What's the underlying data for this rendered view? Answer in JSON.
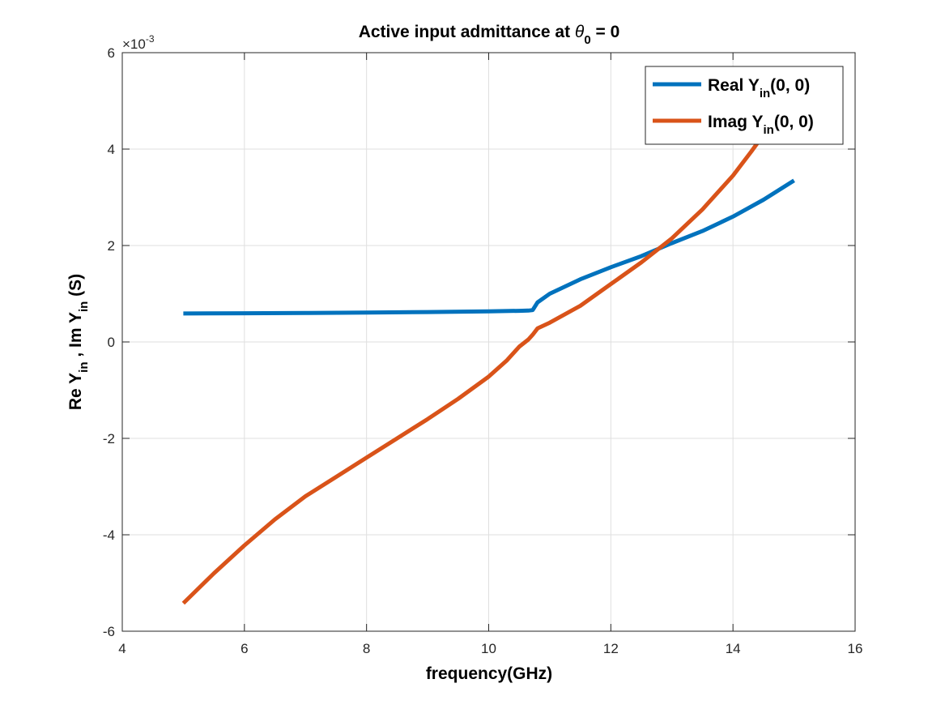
{
  "chart_data": {
    "type": "line",
    "title": {
      "prefix": "Active input admittance at ",
      "symbol": "θ",
      "sub": "0",
      "suffix": " = 0"
    },
    "xlabel": "frequency(GHz)",
    "ylabel": {
      "p1": "Re Y",
      "s1": "in",
      "p2": " , Im Y",
      "s2": "in",
      "p3": " (S)"
    },
    "y_exponent_label": "×10",
    "y_exponent": "-3",
    "xlim": [
      4,
      16
    ],
    "ylim": [
      -6,
      6
    ],
    "xticks": [
      4,
      6,
      8,
      10,
      12,
      14,
      16
    ],
    "yticks": [
      -6,
      -4,
      -2,
      0,
      2,
      4,
      6
    ],
    "grid": true,
    "legend_position": "top-right",
    "series": [
      {
        "name": {
          "pre": "Real Y",
          "sub": "in",
          "post": "(0, 0)"
        },
        "color": "#0072BD",
        "x": [
          5.0,
          6.0,
          7.0,
          8.0,
          9.0,
          10.0,
          10.5,
          10.65,
          10.72,
          10.8,
          11.0,
          11.5,
          12.0,
          12.5,
          13.0,
          13.5,
          14.0,
          14.5,
          15.0
        ],
        "y": [
          0.59,
          0.595,
          0.6,
          0.61,
          0.62,
          0.635,
          0.645,
          0.65,
          0.66,
          0.82,
          1.0,
          1.3,
          1.55,
          1.78,
          2.05,
          2.3,
          2.6,
          2.95,
          3.35
        ]
      },
      {
        "name": {
          "pre": "Imag Y",
          "sub": "in",
          "post": "(0, 0)"
        },
        "color": "#D95319",
        "x": [
          5.0,
          5.5,
          6.0,
          6.5,
          7.0,
          7.5,
          8.0,
          8.5,
          9.0,
          9.5,
          10.0,
          10.3,
          10.5,
          10.65,
          10.72,
          10.8,
          11.0,
          11.5,
          12.0,
          12.5,
          13.0,
          13.5,
          14.0,
          14.3,
          14.5,
          14.6
        ],
        "y": [
          -5.42,
          -4.8,
          -4.22,
          -3.68,
          -3.2,
          -2.8,
          -2.4,
          -2.0,
          -1.6,
          -1.18,
          -0.72,
          -0.38,
          -0.1,
          0.05,
          0.15,
          0.28,
          0.4,
          0.75,
          1.2,
          1.65,
          2.15,
          2.75,
          3.45,
          3.95,
          4.3,
          4.55
        ]
      }
    ]
  }
}
